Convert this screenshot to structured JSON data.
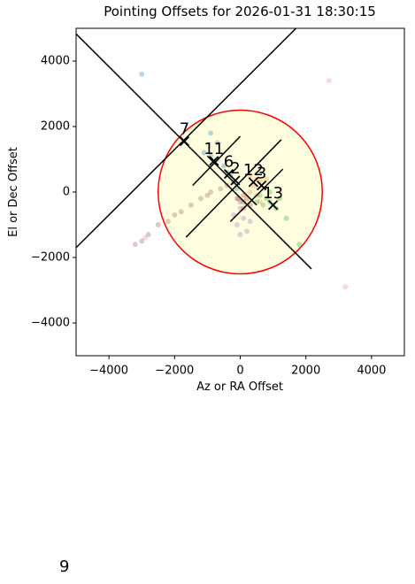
{
  "chart_data": {
    "type": "scatter",
    "title": "Pointing Offsets for 2026-01-31 18:30:15",
    "xlabel": "Az or RA Offset",
    "ylabel": "El or Dec Offset",
    "xlim": [
      -5000,
      5000
    ],
    "ylim": [
      -5000,
      5000
    ],
    "xticks": [
      {
        "value": -4000,
        "label": "−4000"
      },
      {
        "value": -2000,
        "label": "−2000"
      },
      0,
      2000,
      4000
    ],
    "yticks": [
      {
        "value": -4000,
        "label": "−4000"
      },
      {
        "value": -2000,
        "label": "−2000"
      },
      0,
      2000,
      4000
    ],
    "grid": false,
    "circle": {
      "center": [
        0,
        0
      ],
      "radius": 2500,
      "edgecolor": "#ff0000",
      "facecolor": "#ffffe0"
    },
    "series": [
      {
        "color": "#1f77b4",
        "x": [
          -3000,
          -900,
          -700,
          -900,
          -700,
          -500,
          -400,
          -300,
          -200,
          -100,
          -50,
          100,
          -1100
        ],
        "y": [
          3600,
          1800,
          1500,
          1100,
          1000,
          800,
          600,
          500,
          300,
          100,
          -200,
          -300,
          1200
        ]
      },
      {
        "color": "#ff7f0e",
        "x": [
          300,
          500,
          600,
          400,
          700,
          500,
          300,
          800,
          600,
          200
        ],
        "y": [
          500,
          400,
          300,
          200,
          100,
          -100,
          0,
          400,
          -300,
          -400
        ]
      },
      {
        "color": "#2ca02c",
        "x": [
          600,
          800,
          900,
          1000,
          1100,
          700,
          1200,
          500,
          900,
          1400,
          1800
        ],
        "y": [
          -100,
          -200,
          -300,
          -400,
          -500,
          -400,
          -200,
          -300,
          0,
          -800,
          -1600
        ]
      },
      {
        "color": "#d62728",
        "x": [
          100,
          200,
          0,
          -100,
          300,
          100
        ],
        "y": [
          -100,
          -200,
          -300,
          -200,
          -400,
          -500
        ]
      },
      {
        "color": "#9467bd",
        "x": [
          0,
          100,
          -100,
          200,
          0,
          300,
          -200
        ],
        "y": [
          -500,
          -800,
          -1000,
          -1200,
          -1300,
          -900,
          -700
        ]
      },
      {
        "color": "#8c564b",
        "x": [
          -2800,
          -2500,
          -2200,
          -1800,
          -1500,
          -1200,
          -900,
          -600,
          -3000,
          -2000,
          -1000,
          -400,
          -3200
        ],
        "y": [
          -1300,
          -1000,
          -900,
          -600,
          -400,
          -200,
          0,
          100,
          -1500,
          -700,
          -100,
          200,
          -1600
        ]
      },
      {
        "color": "#e377c2",
        "x": [
          2700,
          3200,
          -2900
        ],
        "y": [
          3400,
          -2900,
          -1400
        ]
      }
    ],
    "lines": [
      {
        "x": [
          -5000,
          2170
        ],
        "y": [
          4830,
          -2350
        ]
      },
      {
        "x": [
          -5000,
          1700
        ],
        "y": [
          -1700,
          5000
        ]
      },
      {
        "x": [
          -1650,
          1250
        ],
        "y": [
          -1380,
          1600
        ]
      },
      {
        "x": [
          -1450,
          0
        ],
        "y": [
          200,
          1700
        ]
      },
      {
        "x": [
          -1000,
          500
        ],
        "y": [
          1100,
          -400
        ]
      },
      {
        "x": [
          -300,
          1300
        ],
        "y": [
          -900,
          700
        ]
      }
    ],
    "markers": {
      "x": [
        -1700,
        -800,
        -350,
        -150,
        400,
        650,
        1000
      ],
      "y": [
        1550,
        950,
        550,
        350,
        300,
        200,
        -400
      ],
      "labels": [
        "7",
        "11",
        "6",
        "2",
        "12",
        "3",
        "13"
      ]
    },
    "footer_text": "9"
  }
}
